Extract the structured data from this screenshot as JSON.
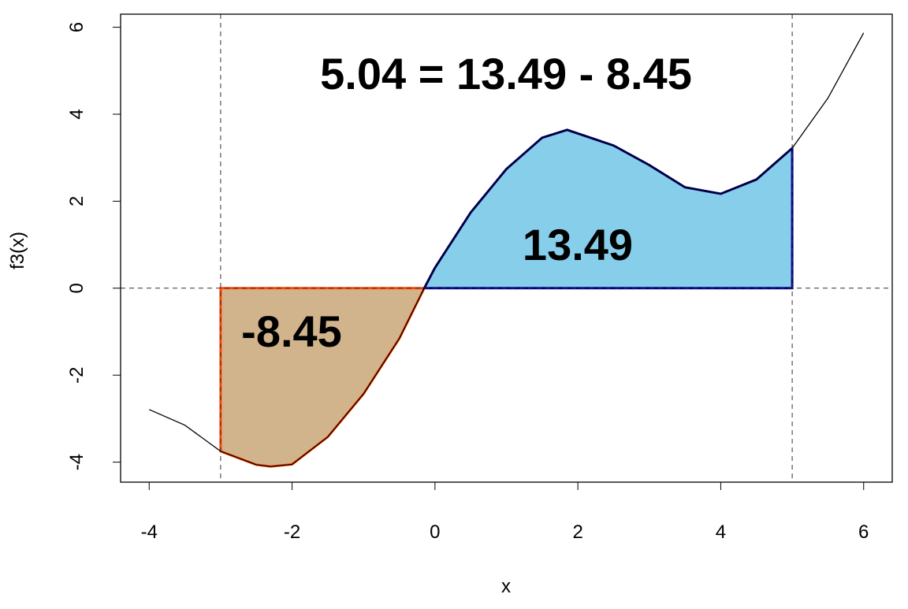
{
  "chart_data": {
    "type": "line",
    "title": "5.04 = 13.49 - 8.45",
    "xlabel": "x",
    "ylabel": "f3(x)",
    "x": [
      -4,
      -3.5,
      -3,
      -2.5,
      -2.3,
      -2,
      -1.5,
      -1,
      -0.5,
      -0.15,
      0,
      0.5,
      1,
      1.5,
      1.85,
      2.5,
      3,
      3.5,
      4,
      4.5,
      5,
      5.5,
      6
    ],
    "series": [
      {
        "name": "f3(x)",
        "color": "#000000",
        "values": [
          -2.79,
          -3.15,
          -3.75,
          -4.06,
          -4.1,
          -4.05,
          -3.42,
          -2.43,
          -1.16,
          0,
          0.47,
          1.74,
          2.74,
          3.46,
          3.64,
          3.28,
          2.83,
          2.32,
          2.17,
          2.5,
          3.22,
          4.37,
          5.87
        ]
      }
    ],
    "regions": [
      {
        "from": -3,
        "to": -0.15,
        "fill": "#d2b48c",
        "stroke": "#ff4500",
        "label": "-8.45"
      },
      {
        "from": -0.15,
        "to": 5,
        "fill": "#87ceeb",
        "stroke": "#00008b",
        "label": "13.49"
      }
    ],
    "vlines": [
      -3,
      5
    ],
    "hlines": [
      0
    ],
    "xlim": [
      -4.4,
      6.4
    ],
    "ylim": [
      -4.46,
      6.3
    ],
    "xticks": [
      -4,
      -2,
      0,
      2,
      4,
      6
    ],
    "yticks": [
      -4,
      -2,
      0,
      2,
      4,
      6
    ]
  }
}
